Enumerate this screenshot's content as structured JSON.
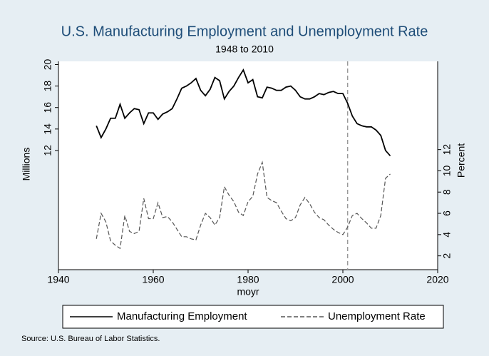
{
  "chart_data": {
    "type": "line",
    "title": "U.S. Manufacturing Employment and Unemployment Rate",
    "subtitle": "1948 to 2010",
    "x_label": "moyr",
    "y_label": "Millions",
    "y2_label": "Percent",
    "source": "Source: U.S. Bureau of Labor Statistics.",
    "x": [
      1948,
      1949,
      1950,
      1951,
      1952,
      1953,
      1954,
      1955,
      1956,
      1957,
      1958,
      1959,
      1960,
      1961,
      1962,
      1963,
      1964,
      1965,
      1966,
      1967,
      1968,
      1969,
      1970,
      1971,
      1972,
      1973,
      1974,
      1975,
      1976,
      1977,
      1978,
      1979,
      1980,
      1981,
      1982,
      1983,
      1984,
      1985,
      1986,
      1987,
      1988,
      1989,
      1990,
      1991,
      1992,
      1993,
      1994,
      1995,
      1996,
      1997,
      1998,
      1999,
      2000,
      2001,
      2002,
      2003,
      2004,
      2005,
      2006,
      2007,
      2008,
      2009,
      2010
    ],
    "series": [
      {
        "name": "Manufacturing Employment",
        "color": "#000000",
        "dash": "solid",
        "values": [
          14.3,
          13.2,
          14.0,
          15.0,
          15.0,
          16.3,
          15.0,
          15.5,
          15.9,
          15.8,
          14.5,
          15.5,
          15.5,
          14.9,
          15.4,
          15.6,
          15.9,
          16.8,
          17.8,
          18.0,
          18.3,
          18.7,
          17.6,
          17.1,
          17.7,
          18.8,
          18.5,
          16.8,
          17.5,
          18.0,
          18.8,
          19.5,
          18.3,
          18.6,
          17.0,
          16.9,
          17.9,
          17.8,
          17.6,
          17.6,
          17.9,
          18.0,
          17.6,
          17.0,
          16.8,
          16.8,
          17.0,
          17.3,
          17.2,
          17.4,
          17.5,
          17.3,
          17.3,
          16.4,
          15.2,
          14.5,
          14.3,
          14.2,
          14.2,
          13.9,
          13.4,
          12.0,
          11.5
        ]
      },
      {
        "name": "Unemployment Rate",
        "color": "#555555",
        "dash": "dashed",
        "axis": "y2",
        "values": [
          3.6,
          6.0,
          5.2,
          3.4,
          3.0,
          2.7,
          5.8,
          4.3,
          4.1,
          4.3,
          7.4,
          5.5,
          5.5,
          7.0,
          5.6,
          5.7,
          5.2,
          4.5,
          3.8,
          3.8,
          3.6,
          3.5,
          4.9,
          6.0,
          5.6,
          4.9,
          5.6,
          8.5,
          7.7,
          7.1,
          6.1,
          5.8,
          7.1,
          7.6,
          9.7,
          10.8,
          7.5,
          7.2,
          7.0,
          6.2,
          5.5,
          5.3,
          5.6,
          6.8,
          7.5,
          6.9,
          6.1,
          5.6,
          5.4,
          4.9,
          4.5,
          4.2,
          4.0,
          4.7,
          5.8,
          6.0,
          5.5,
          5.1,
          4.6,
          4.6,
          5.8,
          9.3,
          9.7
        ]
      }
    ],
    "xline": 2001,
    "xlim": [
      1940,
      2020
    ],
    "xticks": [
      1940,
      1960,
      1980,
      2000,
      2020
    ],
    "ylim": [
      0.9,
      20.3
    ],
    "yticks": [
      12,
      14,
      16,
      18,
      20
    ],
    "y2lim": [
      0.7,
      20.3
    ],
    "y2ticks": [
      2,
      4,
      6,
      8,
      10,
      12
    ]
  }
}
